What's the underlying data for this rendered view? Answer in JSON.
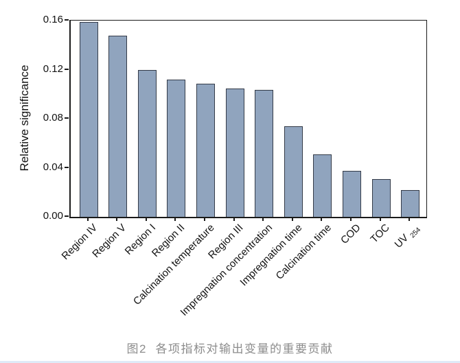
{
  "figure": {
    "caption": "图2  各项指标对输出变量的重要贡献"
  },
  "colors": {
    "bar_fill": "#90a4be",
    "bar_border": "#333a47",
    "axis": "#1a1a1a",
    "caption_text": "#8c8c8c",
    "bottom_strip": "#dfeaf7"
  },
  "chart_data": {
    "type": "bar",
    "title": "",
    "xlabel": "",
    "ylabel": "Relative significance",
    "ylim": [
      0,
      0.16
    ],
    "yticks": [
      0.0,
      0.04,
      0.08,
      0.12,
      0.16
    ],
    "ytick_format_decimals": 2,
    "grid": false,
    "legend": "none",
    "xtick_rotation_deg": 45,
    "categories": [
      "Region IV",
      "Region V",
      "Region I",
      "Region II",
      "Calcination temperature",
      "Region III",
      "Impregnation concentration",
      "Impregnation time",
      "Calcination time",
      "COD",
      "TOC",
      "UV254"
    ],
    "subscript_labels": {
      "UV254": {
        "base": "UV",
        "sub": "254"
      }
    },
    "values": [
      0.159,
      0.148,
      0.12,
      0.112,
      0.109,
      0.105,
      0.104,
      0.074,
      0.051,
      0.038,
      0.031,
      0.022
    ]
  }
}
